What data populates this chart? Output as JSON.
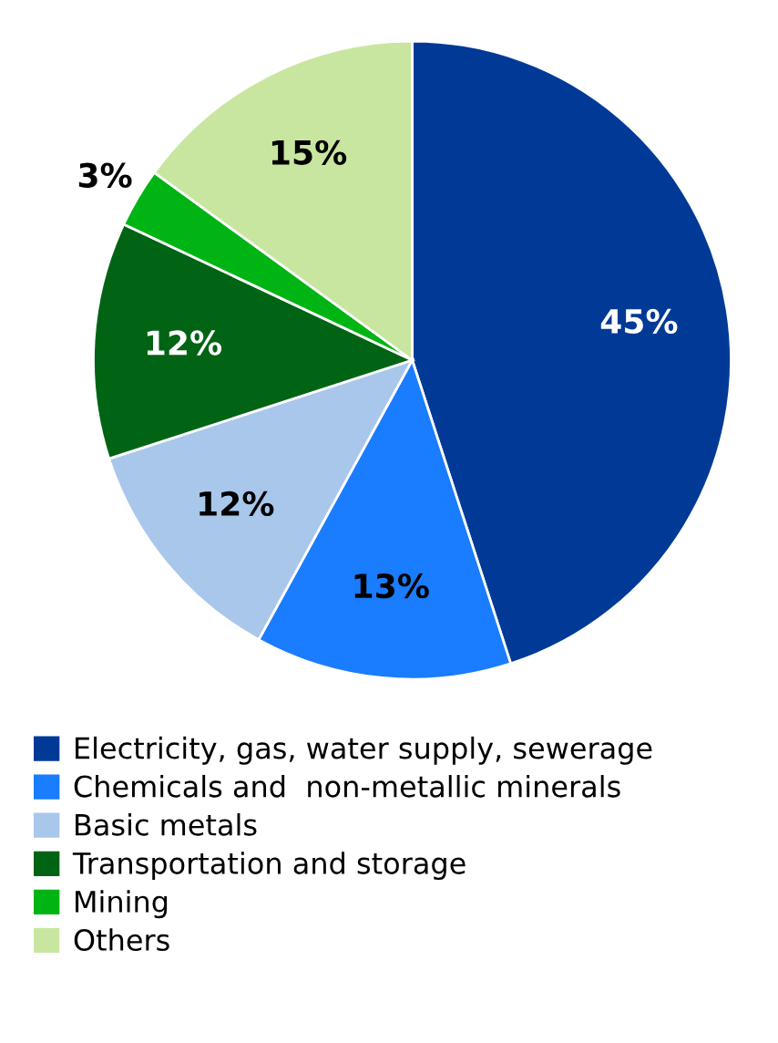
{
  "chart_data": {
    "type": "pie",
    "categories": [
      "Electricity, gas, water supply, sewerage",
      "Chemicals and  non-metallic minerals",
      "Basic metals",
      "Transportation and storage",
      "Mining",
      "Others"
    ],
    "values": [
      45,
      13,
      12,
      12,
      3,
      15
    ],
    "colors": [
      "#003a96",
      "#1a7cff",
      "#a9c7eb",
      "#006414",
      "#00b414",
      "#c9e6a0"
    ],
    "value_labels": [
      "45%",
      "13%",
      "12%",
      "12%",
      "3%",
      "15%"
    ],
    "legend": "bottom"
  }
}
